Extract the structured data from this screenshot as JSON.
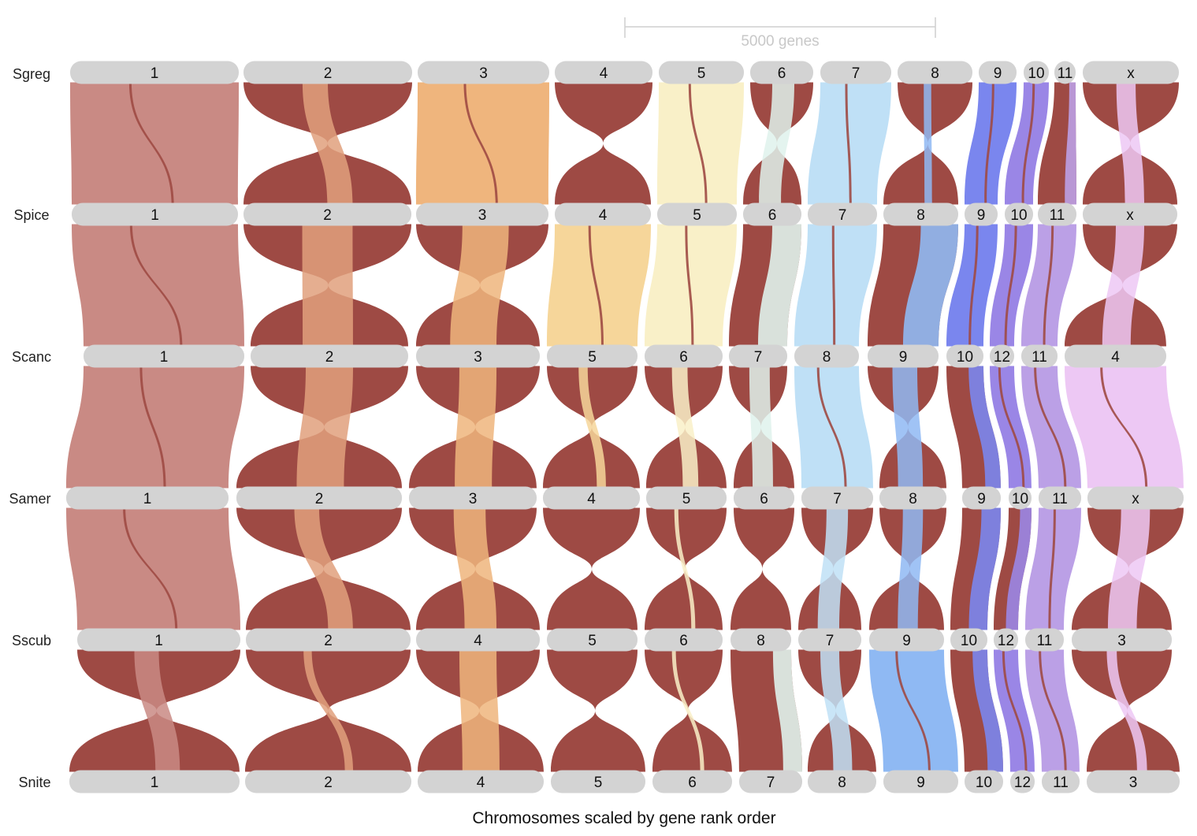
{
  "scale": {
    "label": "5000 genes"
  },
  "footer": {
    "title": "Chromosomes scaled by gene rank order"
  },
  "colors": {
    "chromosome": "#d3d3d3",
    "default_ribbon": "#9e4a44",
    "c1": "#c98a84",
    "c2": "#e0a07c",
    "c3": "#efb57d",
    "c4": "#f6d69a",
    "c5": "#f9f0c8",
    "c6": "#dff2ec",
    "c7": "#bfe0f6",
    "c8": "#8fb9f3",
    "c9": "#7a86ee",
    "c10": "#9a86e6",
    "c11": "#bba0e6",
    "cx": "#edc8f4"
  },
  "genomes": [
    {
      "name": "Sgreg",
      "chromosomes": [
        "1",
        "2",
        "3",
        "4",
        "5",
        "6",
        "7",
        "8",
        "9",
        "10",
        "11",
        "x"
      ]
    },
    {
      "name": "Spice",
      "chromosomes": [
        "1",
        "2",
        "3",
        "4",
        "5",
        "6",
        "7",
        "8",
        "9",
        "10",
        "11",
        "x"
      ]
    },
    {
      "name": "Scanc",
      "chromosomes": [
        "1",
        "2",
        "3",
        "5",
        "6",
        "7",
        "8",
        "9",
        "10",
        "12",
        "11",
        "4"
      ]
    },
    {
      "name": "Samer",
      "chromosomes": [
        "1",
        "2",
        "3",
        "4",
        "5",
        "6",
        "7",
        "8",
        "9",
        "10",
        "11",
        "x"
      ]
    },
    {
      "name": "Sscub",
      "chromosomes": [
        "1",
        "2",
        "4",
        "5",
        "6",
        "8",
        "7",
        "9",
        "10",
        "12",
        "11",
        "3"
      ]
    },
    {
      "name": "Snite",
      "chromosomes": [
        "1",
        "2",
        "4",
        "5",
        "6",
        "7",
        "8",
        "9",
        "10",
        "12",
        "11",
        "3"
      ]
    }
  ]
}
